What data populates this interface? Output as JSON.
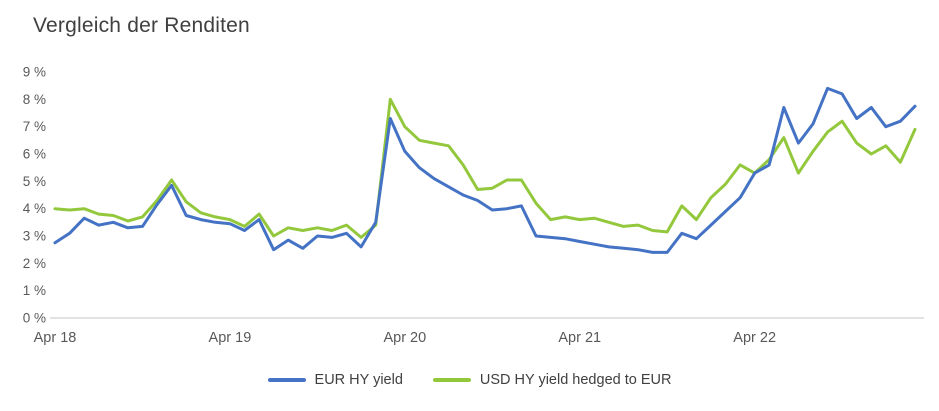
{
  "title": "Vergleich der Renditen",
  "colors": {
    "axis_line": "#D9D9D9",
    "tick_text": "#595959",
    "title_text": "#404040",
    "legend_text": "#404040",
    "eur_series": "#4472C4",
    "usd_series": "#93C83D"
  },
  "chart_data": {
    "type": "line",
    "title": "Vergleich der Renditen",
    "xlabel": "",
    "ylabel": "",
    "ylim": [
      0,
      9
    ],
    "grid": false,
    "legend_position": "bottom",
    "x_unit": "months since Apr 2018",
    "x_tick_labels": [
      "Apr 18",
      "Apr 19",
      "Apr 20",
      "Apr 21",
      "Apr 22"
    ],
    "x_tick_positions_months": [
      0,
      12,
      24,
      36,
      48
    ],
    "y_ticks": [
      "0 %",
      "1 %",
      "2 %",
      "3 %",
      "4 %",
      "5 %",
      "6 %",
      "7 %",
      "8 %",
      "9 %"
    ],
    "series": [
      {
        "name": "EUR HY yield",
        "color": "#4472C4",
        "values": [
          2.75,
          3.1,
          3.65,
          3.4,
          3.5,
          3.3,
          3.35,
          4.15,
          4.85,
          3.75,
          3.6,
          3.5,
          3.45,
          3.2,
          3.6,
          2.5,
          2.85,
          2.55,
          3.0,
          2.95,
          3.1,
          2.6,
          3.5,
          7.3,
          6.1,
          5.5,
          5.1,
          4.8,
          4.5,
          4.3,
          3.95,
          4.0,
          4.1,
          3.0,
          2.95,
          2.9,
          2.8,
          2.7,
          2.6,
          2.55,
          2.5,
          2.4,
          2.4,
          3.1,
          2.9,
          3.4,
          3.9,
          4.4,
          5.3,
          5.6,
          7.7,
          6.4,
          7.1,
          8.4,
          8.2,
          7.3,
          7.7,
          7.0,
          7.2,
          7.75
        ]
      },
      {
        "name": "USD HY yield hedged to EUR",
        "color": "#93C83D",
        "values": [
          4.0,
          3.95,
          4.0,
          3.8,
          3.75,
          3.55,
          3.7,
          4.3,
          5.05,
          4.25,
          3.85,
          3.7,
          3.6,
          3.35,
          3.8,
          3.0,
          3.3,
          3.2,
          3.3,
          3.2,
          3.4,
          2.95,
          3.4,
          8.0,
          7.0,
          6.5,
          6.4,
          6.3,
          5.6,
          4.7,
          4.75,
          5.05,
          5.05,
          4.2,
          3.6,
          3.7,
          3.6,
          3.65,
          3.5,
          3.35,
          3.4,
          3.2,
          3.15,
          4.1,
          3.6,
          4.4,
          4.9,
          5.6,
          5.3,
          5.8,
          6.6,
          5.3,
          6.1,
          6.8,
          7.2,
          6.4,
          6.0,
          6.3,
          5.7,
          6.9
        ]
      }
    ]
  },
  "legend": {
    "eur_label": "EUR HY yield",
    "usd_label": "USD HY yield hedged to EUR"
  }
}
